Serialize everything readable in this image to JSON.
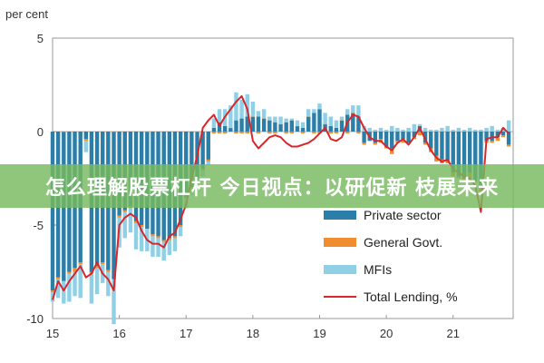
{
  "banner": {
    "text": "怎么理解股票杠杆 今日视点：以研促新 枝展未来"
  },
  "chart_data": {
    "type": "bar",
    "ylabel": "per cent",
    "ylim": [
      -10,
      5
    ],
    "yticks": [
      5,
      0,
      -5,
      -10
    ],
    "xlim": [
      15,
      21.9
    ],
    "xticks": [
      15,
      16,
      17,
      18,
      19,
      20,
      21
    ],
    "grid": false,
    "legend": {
      "placement": "bottom-right",
      "entries": [
        {
          "name": "Private sector",
          "color": "#2a7ea8",
          "kind": "bar"
        },
        {
          "name": "General Govt.",
          "color": "#f08d2f",
          "kind": "bar"
        },
        {
          "name": "MFIs",
          "color": "#8fd0e6",
          "kind": "bar"
        },
        {
          "name": "Total Lending, %",
          "color": "#d8262c",
          "kind": "line"
        }
      ]
    },
    "x": [
      15.0,
      15.083,
      15.167,
      15.25,
      15.333,
      15.417,
      15.5,
      15.583,
      15.667,
      15.75,
      15.833,
      15.917,
      16.0,
      16.083,
      16.167,
      16.25,
      16.333,
      16.417,
      16.5,
      16.583,
      16.667,
      16.75,
      16.833,
      16.917,
      17.0,
      17.083,
      17.167,
      17.25,
      17.333,
      17.417,
      17.5,
      17.583,
      17.667,
      17.75,
      17.833,
      17.917,
      18.0,
      18.083,
      18.167,
      18.25,
      18.333,
      18.417,
      18.5,
      18.583,
      18.667,
      18.75,
      18.833,
      18.917,
      19.0,
      19.083,
      19.167,
      19.25,
      19.333,
      19.417,
      19.5,
      19.583,
      19.667,
      19.75,
      19.833,
      19.917,
      20.0,
      20.083,
      20.167,
      20.25,
      20.333,
      20.417,
      20.5,
      20.583,
      20.667,
      20.75,
      20.833,
      20.917,
      21.0,
      21.083,
      21.167,
      21.25,
      21.333,
      21.417,
      21.5,
      21.583,
      21.667,
      21.75,
      21.833
    ],
    "series": [
      {
        "name": "Private sector",
        "values": [
          -8.5,
          -7.8,
          -8.0,
          -7.5,
          -7.3,
          -7.0,
          -0.4,
          -7.5,
          -7.2,
          -7.0,
          -7.4,
          -7.9,
          -4.5,
          -4.2,
          -4.0,
          -4.8,
          -5.0,
          -5.2,
          -5.5,
          -5.6,
          -5.8,
          -5.7,
          -5.6,
          -5.0,
          -3.5,
          -3.0,
          -2.5,
          -2.0,
          -1.5,
          0.2,
          0.5,
          0.3,
          0.2,
          0.6,
          0.7,
          0.8,
          0.8,
          0.8,
          0.7,
          0.6,
          0.5,
          0.4,
          0.5,
          0.6,
          0.3,
          0.2,
          0.8,
          1.0,
          1.2,
          0.4,
          0.3,
          0.2,
          0.6,
          0.9,
          1.0,
          0.8,
          -0.6,
          -0.5,
          -0.6,
          -0.4,
          -0.8,
          -0.9,
          -0.5,
          -0.4,
          -0.6,
          -0.3,
          0.3,
          -0.6,
          -0.9,
          -1.3,
          -1.5,
          -1.6,
          -2.2,
          -2.4,
          -2.5,
          -2.2,
          -2.6,
          -3.0,
          -0.5,
          -0.5,
          -0.3,
          -0.2,
          -0.7
        ]
      },
      {
        "name": "General Govt.",
        "values": [
          -0.1,
          -0.1,
          0.0,
          -0.1,
          -0.2,
          -0.1,
          -0.1,
          -0.1,
          -0.1,
          -0.1,
          -0.1,
          0.0,
          -0.1,
          -0.1,
          -0.1,
          -0.1,
          -0.1,
          0.0,
          -0.1,
          -0.1,
          -0.1,
          -0.1,
          -0.1,
          -0.1,
          -0.1,
          -0.1,
          0.0,
          -0.1,
          -0.1,
          -0.1,
          -0.1,
          -0.1,
          0.0,
          -0.1,
          -0.1,
          -0.1,
          0.0,
          -0.1,
          0.0,
          -0.1,
          -0.1,
          0.0,
          -0.1,
          -0.1,
          0.0,
          -0.1,
          0.0,
          -0.1,
          -0.1,
          0.0,
          -0.1,
          -0.1,
          0.0,
          -0.1,
          0.0,
          -0.1,
          -0.1,
          0.0,
          -0.1,
          -0.2,
          -0.1,
          -0.3,
          -0.1,
          -0.2,
          0.0,
          -0.1,
          -0.2,
          -0.1,
          -0.2,
          -0.3,
          -0.2,
          -0.1,
          -0.2,
          -0.1,
          -0.2,
          -0.3,
          -0.1,
          -0.2,
          -0.1,
          -0.1,
          -0.2,
          -0.1,
          -0.1
        ]
      },
      {
        "name": "MFIs",
        "values": [
          -0.5,
          -1.0,
          -1.2,
          -1.5,
          -1.3,
          -1.8,
          -0.6,
          -1.6,
          -1.4,
          -1.0,
          -1.3,
          -2.4,
          -1.6,
          -1.4,
          -1.3,
          -1.4,
          -1.3,
          -1.2,
          -1.1,
          -1.0,
          -1.0,
          -0.8,
          -0.7,
          -0.5,
          -0.5,
          -0.3,
          -0.2,
          -0.3,
          -0.2,
          0.5,
          0.7,
          0.9,
          1.2,
          1.5,
          1.0,
          1.2,
          0.8,
          0.3,
          0.5,
          0.2,
          0.3,
          0.4,
          0.2,
          0.1,
          0.3,
          0.3,
          0.4,
          0.2,
          0.3,
          0.6,
          0.5,
          0.4,
          0.2,
          0.3,
          0.4,
          0.6,
          0.3,
          0.2,
          0.1,
          0.2,
          0.1,
          0.3,
          0.2,
          0.1,
          0.2,
          0.4,
          0.1,
          0.2,
          0.1,
          0.1,
          0.2,
          0.3,
          0.1,
          0.2,
          0.1,
          0.2,
          0.1,
          0.1,
          0.2,
          0.3,
          0.1,
          0.2,
          0.6
        ]
      },
      {
        "name": "Total Lending, %",
        "values": [
          -9.0,
          -8.0,
          -8.5,
          -8.0,
          -7.6,
          -7.2,
          -7.8,
          -7.6,
          -7.0,
          -7.6,
          -7.9,
          -8.5,
          -5.0,
          -4.6,
          -4.4,
          -4.6,
          -5.3,
          -5.8,
          -6.0,
          -6.0,
          -6.2,
          -5.6,
          -5.4,
          -4.7,
          -3.9,
          -2.5,
          -1.3,
          0.2,
          0.6,
          0.9,
          0.3,
          0.8,
          1.2,
          1.6,
          1.9,
          1.2,
          -0.5,
          -0.9,
          -0.6,
          -0.3,
          -0.2,
          -0.3,
          -0.6,
          -0.8,
          -0.8,
          -0.7,
          -0.6,
          -0.4,
          -0.1,
          0.2,
          -0.4,
          -0.5,
          -0.3,
          0.5,
          0.9,
          0.8,
          0.2,
          -0.3,
          -0.5,
          -0.5,
          -0.8,
          -1.0,
          -0.6,
          -0.4,
          -0.7,
          -0.3,
          0.2,
          -0.4,
          -1.0,
          -1.4,
          -1.6,
          -1.5,
          -2.0,
          -2.2,
          -2.4,
          -2.5,
          -2.9,
          -4.3,
          -0.4,
          -0.3,
          -0.3,
          0.2,
          -0.1
        ]
      }
    ]
  }
}
